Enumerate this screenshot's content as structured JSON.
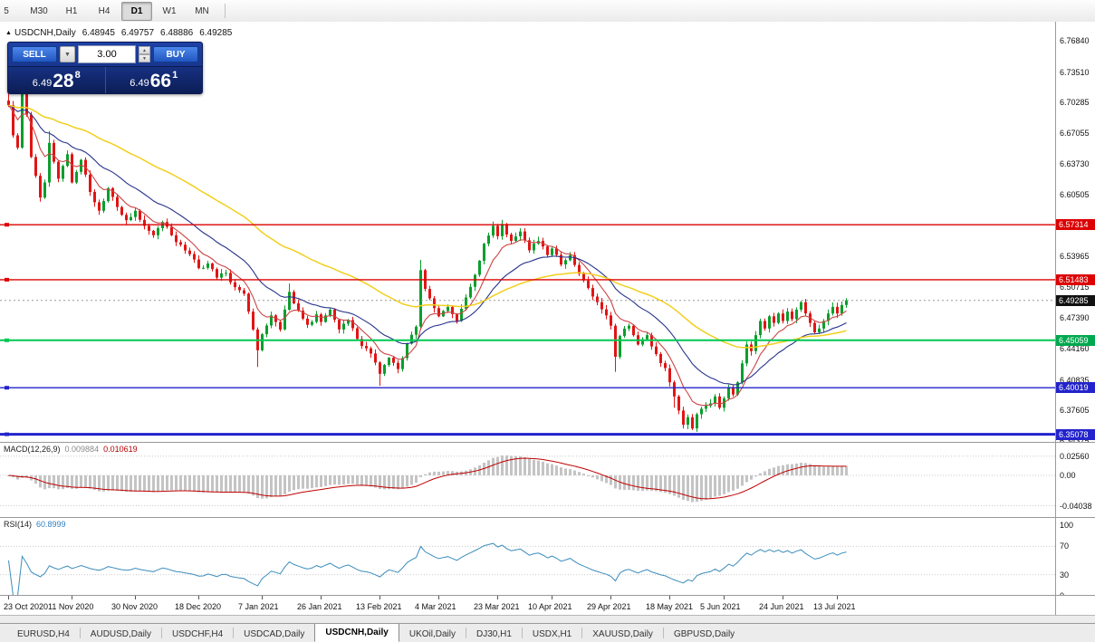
{
  "toolbar": {
    "buttons": [
      {
        "label": "5",
        "partial": true
      },
      {
        "label": "M30"
      },
      {
        "label": "H1"
      },
      {
        "label": "H4"
      },
      {
        "label": "D1",
        "active": true
      },
      {
        "label": "W1"
      },
      {
        "label": "MN"
      }
    ]
  },
  "chart_header": {
    "arrow": "▲",
    "symbol": "USDCNH,Daily",
    "open": "6.48945",
    "high": "6.49757",
    "low": "6.48886",
    "close": "6.49285"
  },
  "one_click": {
    "sell_label": "SELL",
    "buy_label": "BUY",
    "volume": "3.00",
    "sell_price": {
      "base": "6.49",
      "big": "28",
      "sup": "8"
    },
    "buy_price": {
      "base": "6.49",
      "big": "66",
      "sup": "1"
    }
  },
  "price_scale": {
    "ticks": [
      "6.76840",
      "6.73510",
      "6.70285",
      "6.67055",
      "6.63730",
      "6.60505",
      "6.53965",
      "6.50715",
      "6.47390",
      "6.44160",
      "6.40835",
      "6.37605",
      "6.34375"
    ],
    "badges": [
      {
        "label": "6.57314",
        "color": "#dd0000"
      },
      {
        "label": "6.51483",
        "color": "#dd0000"
      },
      {
        "label": "6.49285",
        "color": "#111111"
      },
      {
        "label": "6.45059",
        "color": "#00a84f"
      },
      {
        "label": "6.40019",
        "color": "#2323cc"
      },
      {
        "label": "6.35078",
        "color": "#2323cc"
      }
    ]
  },
  "indicators": {
    "macd": {
      "label": "MACD(12,26,9)",
      "value_main": "0.009884",
      "value_signal": "0.010619",
      "scale": [
        "0.02560",
        "0.00",
        "-0.04038"
      ],
      "scale_values": [
        0.0256,
        0,
        -0.04038
      ]
    },
    "rsi": {
      "label": "RSI(14)",
      "value": "60.8999",
      "scale": [
        "100",
        "70",
        "30",
        "0"
      ],
      "scale_values": [
        100,
        70,
        30,
        0
      ],
      "levels": [
        70,
        30
      ]
    }
  },
  "time_axis": {
    "labels": [
      {
        "text": "23 Oct 2020",
        "i": 0
      },
      {
        "text": "11 Nov 2020",
        "i": 14
      },
      {
        "text": "30 Nov 2020",
        "i": 28
      },
      {
        "text": "18 Dec 2020",
        "i": 42
      },
      {
        "text": "7 Jan 2021",
        "i": 56
      },
      {
        "text": "26 Jan 2021",
        "i": 69
      },
      {
        "text": "13 Feb 2021",
        "i": 82
      },
      {
        "text": "4 Mar 2021",
        "i": 95
      },
      {
        "text": "23 Mar 2021",
        "i": 108
      },
      {
        "text": "10 Apr 2021",
        "i": 120
      },
      {
        "text": "29 Apr 2021",
        "i": 133
      },
      {
        "text": "18 May 2021",
        "i": 146
      },
      {
        "text": "5 Jun 2021",
        "i": 158
      },
      {
        "text": "24 Jun 2021",
        "i": 171
      },
      {
        "text": "13 Jul 2021",
        "i": 183
      }
    ]
  },
  "tabs": [
    {
      "label": "EURUSD,H4"
    },
    {
      "label": "AUDUSD,Daily"
    },
    {
      "label": "USDCHF,H4"
    },
    {
      "label": "USDCAD,Daily"
    },
    {
      "label": "USDCNH,Daily",
      "active": true
    },
    {
      "label": "UKOil,Daily"
    },
    {
      "label": "DJ30,H1"
    },
    {
      "label": "USDX,H1"
    },
    {
      "label": "XAUUSD,Daily"
    },
    {
      "label": "GBPUSD,Daily"
    }
  ],
  "chart_data": {
    "type": "candlestick",
    "symbol": "USDCNH",
    "timeframe": "Daily",
    "ylim": [
      6.3437,
      6.7684
    ],
    "candle_count": 186,
    "up_color": "#0b9e2d",
    "down_color": "#e01515",
    "last_ohlc": [
      6.48945,
      6.49757,
      6.48886,
      6.49285
    ],
    "price_anchors": [
      [
        0,
        6.7
      ],
      [
        1,
        6.668
      ],
      [
        2,
        6.655
      ],
      [
        3,
        6.712
      ],
      [
        4,
        6.69
      ],
      [
        5,
        6.645
      ],
      [
        6,
        6.625
      ],
      [
        7,
        6.602
      ],
      [
        8,
        6.618
      ],
      [
        9,
        6.66
      ],
      [
        10,
        6.64
      ],
      [
        11,
        6.622
      ],
      [
        13,
        6.648
      ],
      [
        14,
        6.618
      ],
      [
        16,
        6.642
      ],
      [
        18,
        6.608
      ],
      [
        20,
        6.588
      ],
      [
        22,
        6.612
      ],
      [
        24,
        6.592
      ],
      [
        26,
        6.578
      ],
      [
        28,
        6.588
      ],
      [
        30,
        6.572
      ],
      [
        32,
        6.562
      ],
      [
        34,
        6.576
      ],
      [
        36,
        6.562
      ],
      [
        38,
        6.552
      ],
      [
        40,
        6.542
      ],
      [
        42,
        6.527
      ],
      [
        44,
        6.532
      ],
      [
        46,
        6.517
      ],
      [
        48,
        6.522
      ],
      [
        50,
        6.507
      ],
      [
        52,
        6.5
      ],
      [
        54,
        6.462
      ],
      [
        55,
        6.44
      ],
      [
        56,
        6.457
      ],
      [
        58,
        6.477
      ],
      [
        60,
        6.462
      ],
      [
        62,
        6.502
      ],
      [
        64,
        6.482
      ],
      [
        66,
        6.467
      ],
      [
        68,
        6.478
      ],
      [
        69,
        6.47
      ],
      [
        71,
        6.483
      ],
      [
        73,
        6.462
      ],
      [
        75,
        6.472
      ],
      [
        77,
        6.452
      ],
      [
        79,
        6.442
      ],
      [
        81,
        6.427
      ],
      [
        82,
        6.415
      ],
      [
        84,
        6.432
      ],
      [
        86,
        6.42
      ],
      [
        88,
        6.447
      ],
      [
        90,
        6.465
      ],
      [
        91,
        6.525
      ],
      [
        92,
        6.505
      ],
      [
        93,
        6.495
      ],
      [
        95,
        6.476
      ],
      [
        97,
        6.486
      ],
      [
        99,
        6.471
      ],
      [
        101,
        6.496
      ],
      [
        103,
        6.52
      ],
      [
        105,
        6.553
      ],
      [
        107,
        6.572
      ],
      [
        108,
        6.561
      ],
      [
        109,
        6.574
      ],
      [
        111,
        6.556
      ],
      [
        113,
        6.566
      ],
      [
        115,
        6.546
      ],
      [
        117,
        6.556
      ],
      [
        119,
        6.541
      ],
      [
        120,
        6.548
      ],
      [
        122,
        6.531
      ],
      [
        124,
        6.541
      ],
      [
        126,
        6.521
      ],
      [
        128,
        6.506
      ],
      [
        130,
        6.491
      ],
      [
        132,
        6.477
      ],
      [
        133,
        6.466
      ],
      [
        134,
        6.433
      ],
      [
        135,
        6.455
      ],
      [
        137,
        6.466
      ],
      [
        139,
        6.446
      ],
      [
        141,
        6.456
      ],
      [
        143,
        6.436
      ],
      [
        145,
        6.421
      ],
      [
        146,
        6.406
      ],
      [
        147,
        6.391
      ],
      [
        148,
        6.376
      ],
      [
        149,
        6.361
      ],
      [
        150,
        6.369
      ],
      [
        151,
        6.357
      ],
      [
        152,
        6.372
      ],
      [
        154,
        6.381
      ],
      [
        156,
        6.391
      ],
      [
        157,
        6.379
      ],
      [
        158,
        6.389
      ],
      [
        159,
        6.401
      ],
      [
        160,
        6.393
      ],
      [
        161,
        6.406
      ],
      [
        162,
        6.426
      ],
      [
        163,
        6.446
      ],
      [
        164,
        6.439
      ],
      [
        165,
        6.456
      ],
      [
        166,
        6.471
      ],
      [
        167,
        6.463
      ],
      [
        168,
        6.476
      ],
      [
        169,
        6.469
      ],
      [
        170,
        6.479
      ],
      [
        171,
        6.471
      ],
      [
        172,
        6.481
      ],
      [
        173,
        6.473
      ],
      [
        174,
        6.483
      ],
      [
        175,
        6.491
      ],
      [
        176,
        6.479
      ],
      [
        177,
        6.469
      ],
      [
        178,
        6.459
      ],
      [
        179,
        6.463
      ],
      [
        180,
        6.471
      ],
      [
        181,
        6.479
      ],
      [
        182,
        6.486
      ],
      [
        183,
        6.479
      ],
      [
        184,
        6.488
      ],
      [
        185,
        6.4929
      ]
    ],
    "wick_spikes": [
      [
        0,
        0.013
      ],
      [
        3,
        0.014
      ],
      [
        9,
        0.01
      ],
      [
        55,
        -0.014
      ],
      [
        62,
        0.006
      ],
      [
        82,
        -0.011
      ],
      [
        91,
        0.007
      ],
      [
        134,
        -0.013
      ],
      [
        147,
        -0.008
      ]
    ],
    "moving_averages": [
      {
        "name": "fast-ma",
        "color": "#c44"
      },
      {
        "name": "medium-ma",
        "color": "#27348b"
      },
      {
        "name": "slow-ma",
        "color": "#f2cf1d"
      }
    ],
    "horizontal_lines": [
      {
        "price": 6.57314,
        "color": "#dd0000",
        "width": 1.4
      },
      {
        "price": 6.51483,
        "color": "#dd0000",
        "width": 1.4
      },
      {
        "price": 6.45059,
        "color": "#00c853",
        "width": 2
      },
      {
        "price": 6.40019,
        "color": "#2323cc",
        "width": 1.4
      },
      {
        "price": 6.35078,
        "color": "#2323cc",
        "width": 3
      }
    ],
    "current_price": 6.49285,
    "macd": {
      "params": [
        12,
        26,
        9
      ],
      "last_main": 0.009884,
      "last_signal": 0.010619,
      "scale_ticks": [
        0.0256,
        0,
        -0.04038
      ]
    },
    "rsi": {
      "period": 14,
      "last": 60.8999,
      "levels": [
        70,
        30
      ]
    }
  }
}
